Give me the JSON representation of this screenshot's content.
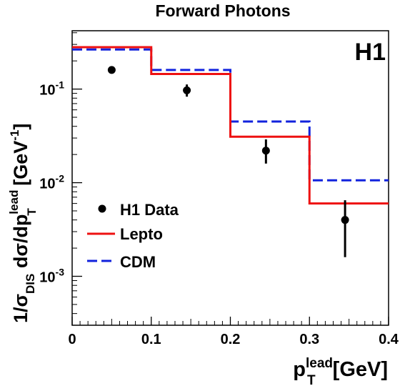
{
  "chart_data": {
    "type": "step",
    "title": "Forward Photons",
    "experiment_label": "H1",
    "xlabel": {
      "base": "p",
      "sub": "T",
      "sup": "lead",
      "unit": "[GeV]"
    },
    "ylabel": {
      "prefix": "1/",
      "sigma": "σ",
      "sigma_sub": "DIS",
      "middle": " dσ/dp",
      "sub": "T",
      "sup": "lead",
      "unit_open": " [GeV",
      "unit_sup": "-1",
      "unit_close": "]"
    },
    "xlim": [
      0,
      0.4
    ],
    "ylim": [
      0.0003,
      0.42
    ],
    "yscale": "log",
    "grid": false,
    "legend_position": "left-center",
    "x_ticks": [
      {
        "value": 0,
        "label": "0"
      },
      {
        "value": 0.1,
        "label": "0.1"
      },
      {
        "value": 0.2,
        "label": "0.2"
      },
      {
        "value": 0.3,
        "label": "0.3"
      },
      {
        "value": 0.4,
        "label": "0.4"
      }
    ],
    "y_ticks": [
      {
        "value": 0.001,
        "base": "10",
        "exp": "-3"
      },
      {
        "value": 0.01,
        "base": "10",
        "exp": "-2"
      },
      {
        "value": 0.1,
        "base": "10",
        "exp": "-1"
      }
    ],
    "bin_edges": [
      0,
      0.1,
      0.2,
      0.3,
      0.4
    ],
    "data": {
      "name": "H1 Data",
      "x": [
        0.05,
        0.145,
        0.245,
        0.345
      ],
      "y": [
        0.16,
        0.097,
        0.022,
        0.004
      ],
      "y_low": [
        0.16,
        0.083,
        0.016,
        0.0016
      ],
      "y_high": [
        0.16,
        0.112,
        0.029,
        0.0065
      ],
      "color": "#000000"
    },
    "series": [
      {
        "name": "Lepto",
        "style": "solid",
        "color": "#ee1111",
        "values": [
          0.28,
          0.145,
          0.031,
          0.006
        ]
      },
      {
        "name": "CDM",
        "style": "dashed",
        "color": "#1122dd",
        "values": [
          0.265,
          0.16,
          0.045,
          0.0106
        ]
      }
    ]
  }
}
